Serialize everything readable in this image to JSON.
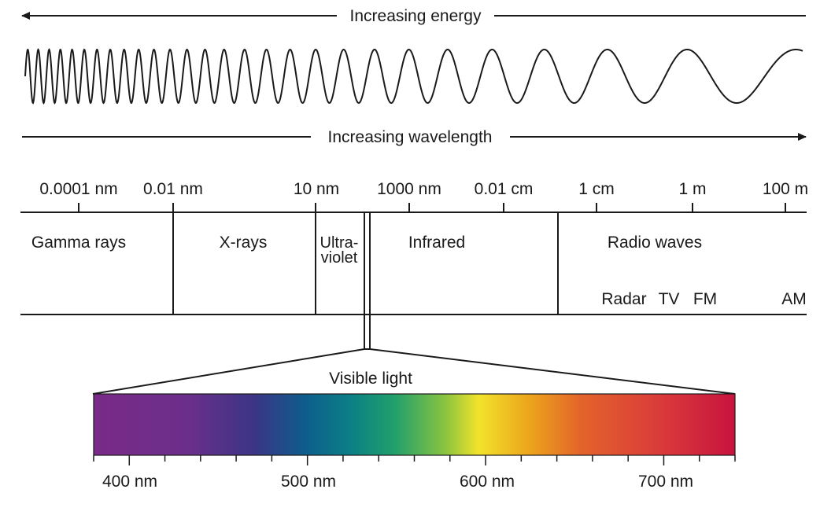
{
  "energy_label": "Increasing energy",
  "wavelength_label": "Increasing wavelength",
  "scale_ticks": [
    "0.0001 nm",
    "0.01 nm",
    "10 nm",
    "1000 nm",
    "0.01 cm",
    "1 cm",
    "1 m",
    "100 m"
  ],
  "bands": {
    "gamma": "Gamma rays",
    "xray": "X-rays",
    "uv_line1": "Ultra-",
    "uv_line2": "violet",
    "infrared": "Infrared",
    "radio": "Radio waves"
  },
  "radio_sub": [
    "Radar",
    "TV",
    "FM",
    "AM"
  ],
  "visible_label": "Visible light",
  "visible_ticks": [
    "400 nm",
    "500 nm",
    "600 nm",
    "700 nm"
  ],
  "spectrum_colors": [
    "#7a2a88",
    "#6a2f8a",
    "#3b3585",
    "#0e5d8c",
    "#0b7f86",
    "#22a06b",
    "#8cc53f",
    "#f2e32a",
    "#eca41c",
    "#e3632a",
    "#da3c3a",
    "#c8133f"
  ]
}
